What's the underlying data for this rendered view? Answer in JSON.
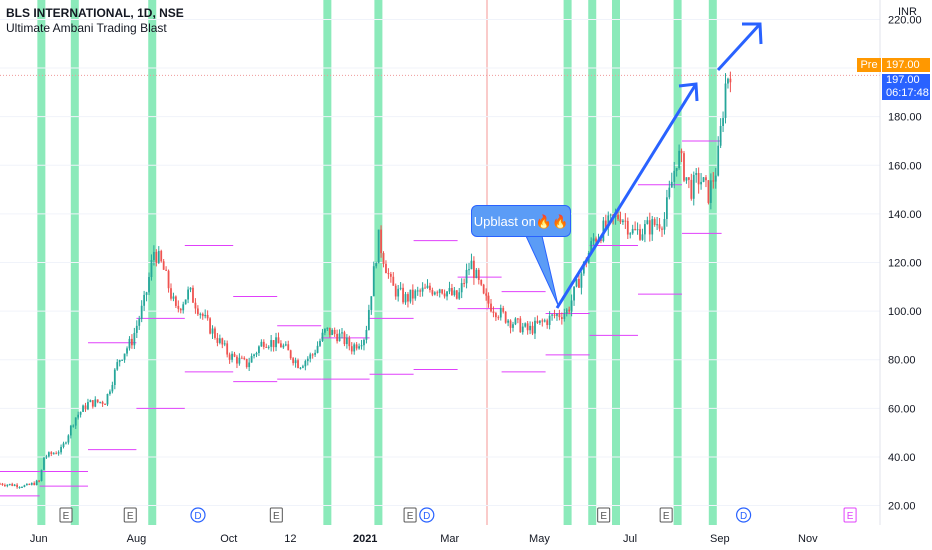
{
  "header": {
    "symbol": "BLS INTERNATIONAL, 1D, NSE",
    "indicator": "Ultimate Ambani Trading Blast",
    "currency": "INR"
  },
  "price_labels": {
    "pre_label": "Pre",
    "pre_value": "197.00",
    "last_value": "197.00",
    "countdown": "06:17:48"
  },
  "callout": {
    "text": "Upblast on🔥🔥"
  },
  "colors": {
    "up": "#26a69a",
    "down": "#ef5350",
    "signal_band": "#7ee8b3",
    "levels": "#e040fb",
    "arrow": "#2962ff",
    "callout": "#5b9cf6",
    "pre": "#ff9800",
    "last": "#2962ff"
  },
  "chart_data": {
    "type": "candlestick",
    "title": "BLS INTERNATIONAL, 1D, NSE",
    "ylabel": "INR",
    "ylim": [
      12,
      228
    ],
    "y_ticks": [
      "20.00",
      "40.00",
      "60.00",
      "80.00",
      "100.00",
      "120.00",
      "140.00",
      "160.00",
      "180.00",
      "200.00",
      "220.00"
    ],
    "x_ticks": [
      {
        "label": "Jun",
        "bold": false
      },
      {
        "label": "Aug",
        "bold": false
      },
      {
        "label": "Oct",
        "bold": false
      },
      {
        "label": "12",
        "bold": false
      },
      {
        "label": "2021",
        "bold": true
      },
      {
        "label": "Mar",
        "bold": false
      },
      {
        "label": "May",
        "bold": false
      },
      {
        "label": "Jul",
        "bold": false
      },
      {
        "label": "Sep",
        "bold": false
      },
      {
        "label": "Nov",
        "bold": false
      }
    ],
    "price_path": [
      [
        0,
        29
      ],
      [
        0.03,
        28
      ],
      [
        0.045,
        30
      ],
      [
        0.05,
        40
      ],
      [
        0.07,
        43
      ],
      [
        0.085,
        56
      ],
      [
        0.1,
        62
      ],
      [
        0.12,
        63
      ],
      [
        0.135,
        80
      ],
      [
        0.15,
        88
      ],
      [
        0.165,
        105
      ],
      [
        0.175,
        125
      ],
      [
        0.185,
        118
      ],
      [
        0.2,
        100
      ],
      [
        0.215,
        108
      ],
      [
        0.235,
        95
      ],
      [
        0.26,
        82
      ],
      [
        0.28,
        78
      ],
      [
        0.3,
        88
      ],
      [
        0.32,
        86
      ],
      [
        0.34,
        78
      ],
      [
        0.355,
        82
      ],
      [
        0.37,
        92
      ],
      [
        0.385,
        90
      ],
      [
        0.4,
        85
      ],
      [
        0.415,
        90
      ],
      [
        0.43,
        130
      ],
      [
        0.445,
        110
      ],
      [
        0.46,
        105
      ],
      [
        0.48,
        108
      ],
      [
        0.5,
        110
      ],
      [
        0.52,
        105
      ],
      [
        0.535,
        120
      ],
      [
        0.55,
        105
      ],
      [
        0.565,
        100
      ],
      [
        0.58,
        96
      ],
      [
        0.6,
        92
      ],
      [
        0.615,
        95
      ],
      [
        0.63,
        98
      ],
      [
        0.645,
        100
      ],
      [
        0.66,
        115
      ],
      [
        0.675,
        130
      ],
      [
        0.69,
        135
      ],
      [
        0.705,
        140
      ],
      [
        0.72,
        132
      ],
      [
        0.74,
        135
      ],
      [
        0.755,
        138
      ],
      [
        0.77,
        165
      ],
      [
        0.785,
        150
      ],
      [
        0.795,
        155
      ],
      [
        0.805,
        148
      ],
      [
        0.815,
        160
      ],
      [
        0.825,
        195
      ],
      [
        0.83,
        200
      ]
    ],
    "signal_bands_frac": [
      0.047,
      0.085,
      0.173,
      0.372,
      0.43,
      0.645,
      0.673,
      0.7,
      0.77,
      0.81
    ],
    "support_resistance_levels": [
      {
        "x0": 0.0,
        "x1": 0.045,
        "y": 34
      },
      {
        "x0": 0.0,
        "x1": 0.045,
        "y": 24
      },
      {
        "x0": 0.045,
        "x1": 0.1,
        "y": 34
      },
      {
        "x0": 0.045,
        "x1": 0.1,
        "y": 28
      },
      {
        "x0": 0.1,
        "x1": 0.155,
        "y": 87
      },
      {
        "x0": 0.1,
        "x1": 0.155,
        "y": 43
      },
      {
        "x0": 0.155,
        "x1": 0.21,
        "y": 97
      },
      {
        "x0": 0.155,
        "x1": 0.21,
        "y": 60
      },
      {
        "x0": 0.21,
        "x1": 0.265,
        "y": 127
      },
      {
        "x0": 0.21,
        "x1": 0.265,
        "y": 75
      },
      {
        "x0": 0.265,
        "x1": 0.315,
        "y": 106
      },
      {
        "x0": 0.265,
        "x1": 0.315,
        "y": 71
      },
      {
        "x0": 0.315,
        "x1": 0.365,
        "y": 94
      },
      {
        "x0": 0.315,
        "x1": 0.365,
        "y": 72
      },
      {
        "x0": 0.365,
        "x1": 0.42,
        "y": 89
      },
      {
        "x0": 0.365,
        "x1": 0.42,
        "y": 72
      },
      {
        "x0": 0.42,
        "x1": 0.47,
        "y": 97
      },
      {
        "x0": 0.42,
        "x1": 0.47,
        "y": 74
      },
      {
        "x0": 0.47,
        "x1": 0.52,
        "y": 129
      },
      {
        "x0": 0.47,
        "x1": 0.52,
        "y": 76
      },
      {
        "x0": 0.52,
        "x1": 0.57,
        "y": 114
      },
      {
        "x0": 0.52,
        "x1": 0.57,
        "y": 101
      },
      {
        "x0": 0.57,
        "x1": 0.62,
        "y": 108
      },
      {
        "x0": 0.57,
        "x1": 0.62,
        "y": 75
      },
      {
        "x0": 0.62,
        "x1": 0.67,
        "y": 99
      },
      {
        "x0": 0.62,
        "x1": 0.67,
        "y": 82
      },
      {
        "x0": 0.67,
        "x1": 0.725,
        "y": 127
      },
      {
        "x0": 0.67,
        "x1": 0.725,
        "y": 90
      },
      {
        "x0": 0.725,
        "x1": 0.775,
        "y": 152
      },
      {
        "x0": 0.725,
        "x1": 0.775,
        "y": 107
      },
      {
        "x0": 0.775,
        "x1": 0.82,
        "y": 170
      },
      {
        "x0": 0.775,
        "x1": 0.82,
        "y": 132
      }
    ],
    "event_markers": [
      {
        "label": "E",
        "type": "earnings",
        "x": 0.075
      },
      {
        "label": "E",
        "type": "earnings",
        "x": 0.148
      },
      {
        "label": "D",
        "type": "dividend",
        "x": 0.225
      },
      {
        "label": "E",
        "type": "earnings",
        "x": 0.314
      },
      {
        "label": "E",
        "type": "earnings",
        "x": 0.466
      },
      {
        "label": "D",
        "type": "dividend",
        "x": 0.485
      },
      {
        "label": "E",
        "type": "earnings",
        "x": 0.686
      },
      {
        "label": "E",
        "type": "earnings",
        "x": 0.757
      },
      {
        "label": "D",
        "type": "dividend",
        "x": 0.845
      },
      {
        "label": "E",
        "type": "earnings_future",
        "x": 0.966
      }
    ]
  }
}
